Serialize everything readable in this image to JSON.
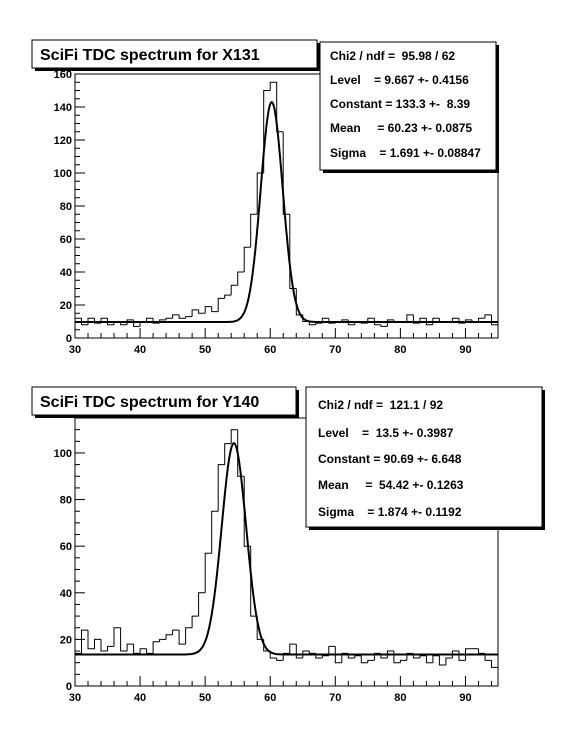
{
  "chart_data": [
    {
      "type": "line",
      "title": "SciFi TDC spectrum for X131",
      "xlabel": "",
      "ylabel": "",
      "xlim": [
        30,
        95
      ],
      "ylim": [
        0,
        160
      ],
      "x_ticks": [
        30,
        40,
        50,
        60,
        70,
        80,
        90
      ],
      "y_ticks": [
        0,
        20,
        40,
        60,
        80,
        100,
        120,
        140,
        160
      ],
      "grid": false,
      "stats": [
        "Chi2 / ndf =  95.98 / 62",
        "Level    = 9.667 +- 0.4156",
        "Constant = 133.3 +-  8.39",
        "Mean     = 60.23 +- 0.0875",
        "Sigma    = 1.691 +- 0.08847"
      ],
      "fit": {
        "level": 9.667,
        "constant": 133.3,
        "mean": 60.23,
        "sigma": 1.691
      },
      "series": [
        {
          "kind": "histogram",
          "bin_width": 1,
          "x": [
            30,
            31,
            32,
            33,
            34,
            35,
            36,
            37,
            38,
            39,
            40,
            41,
            42,
            43,
            44,
            45,
            46,
            47,
            48,
            49,
            50,
            51,
            52,
            53,
            54,
            55,
            56,
            57,
            58,
            59,
            60,
            61,
            62,
            63,
            64,
            65,
            66,
            67,
            68,
            69,
            70,
            71,
            72,
            73,
            74,
            75,
            76,
            77,
            78,
            79,
            80,
            81,
            82,
            83,
            84,
            85,
            86,
            87,
            88,
            89,
            90,
            91,
            92,
            93,
            94
          ],
          "values": [
            12,
            8,
            12,
            9,
            12,
            8,
            10,
            8,
            11,
            7,
            10,
            12,
            9,
            11,
            12,
            14,
            12,
            13,
            17,
            15,
            19,
            16,
            24,
            26,
            32,
            40,
            55,
            75,
            100,
            150,
            155,
            125,
            75,
            30,
            14,
            10,
            8,
            9,
            12,
            9,
            10,
            11,
            8,
            10,
            9,
            12,
            8,
            7,
            11,
            10,
            10,
            14,
            9,
            12,
            8,
            12,
            10,
            10,
            12,
            9,
            11,
            10,
            12,
            14,
            8
          ]
        },
        {
          "kind": "fit"
        }
      ]
    },
    {
      "type": "line",
      "title": "SciFi TDC spectrum for Y140",
      "xlabel": "",
      "ylabel": "",
      "xlim": [
        30,
        95
      ],
      "ylim": [
        0,
        115
      ],
      "x_ticks": [
        30,
        40,
        50,
        60,
        70,
        80,
        90
      ],
      "y_ticks": [
        0,
        20,
        40,
        60,
        80,
        100
      ],
      "grid": false,
      "stats": [
        "Chi2 / ndf =  121.1 / 92",
        "Level    =  13.5 +- 0.3987",
        "Constant = 90.69 +- 6.648",
        "Mean     =  54.42 +- 0.1263",
        "Sigma    = 1.874 +- 0.1192"
      ],
      "fit": {
        "level": 13.5,
        "constant": 90.69,
        "mean": 54.42,
        "sigma": 1.874
      },
      "series": [
        {
          "kind": "histogram",
          "bin_width": 1,
          "x": [
            30,
            31,
            32,
            33,
            34,
            35,
            36,
            37,
            38,
            39,
            40,
            41,
            42,
            43,
            44,
            45,
            46,
            47,
            48,
            49,
            50,
            51,
            52,
            53,
            54,
            55,
            56,
            57,
            58,
            59,
            60,
            61,
            62,
            63,
            64,
            65,
            66,
            67,
            68,
            69,
            70,
            71,
            72,
            73,
            74,
            75,
            76,
            77,
            78,
            79,
            80,
            81,
            82,
            83,
            84,
            85,
            86,
            87,
            88,
            89,
            90,
            91,
            92,
            93,
            94
          ],
          "values": [
            14,
            24,
            16,
            20,
            15,
            17,
            25,
            15,
            18,
            14,
            16,
            14,
            19,
            20,
            22,
            24,
            18,
            25,
            30,
            40,
            57,
            75,
            95,
            104,
            110,
            90,
            60,
            30,
            20,
            15,
            12,
            11,
            14,
            18,
            12,
            15,
            14,
            12,
            13,
            17,
            10,
            14,
            12,
            13,
            10,
            11,
            14,
            12,
            15,
            10,
            11,
            14,
            12,
            13,
            10,
            13,
            9,
            12,
            15,
            11,
            16,
            16,
            14,
            11,
            8
          ]
        },
        {
          "kind": "fit"
        }
      ]
    }
  ]
}
